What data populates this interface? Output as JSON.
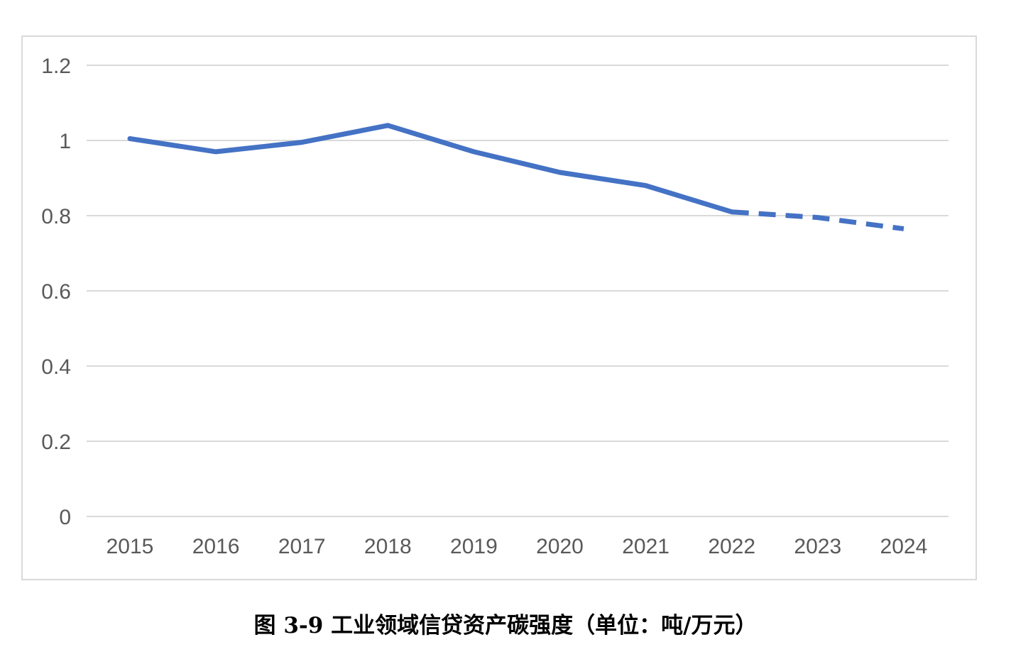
{
  "chart_data": {
    "type": "line",
    "title": "",
    "xlabel": "",
    "ylabel": "",
    "categories": [
      "2015",
      "2016",
      "2017",
      "2018",
      "2019",
      "2020",
      "2021",
      "2022",
      "2023",
      "2024"
    ],
    "series": [
      {
        "values": [
          1.005,
          0.97,
          0.995,
          1.04,
          0.97,
          0.915,
          0.88,
          0.81,
          0.795,
          0.765
        ],
        "color": "#4472c4",
        "solid_until_index": 7,
        "dashed_after_index": 7
      }
    ],
    "ylim": [
      0,
      1.2
    ],
    "yticks": [
      "0",
      "0.2",
      "0.4",
      "0.6",
      "0.8",
      "1",
      "1.2"
    ],
    "ytick_values": [
      0,
      0.2,
      0.4,
      0.6,
      0.8,
      1.0,
      1.2
    ],
    "grid": true,
    "legend": "none",
    "gridline_color": "#d9d9d9",
    "tick_color": "#595959"
  },
  "caption": "图 3-9 工业领域信贷资产碳强度（单位：吨/万元）"
}
